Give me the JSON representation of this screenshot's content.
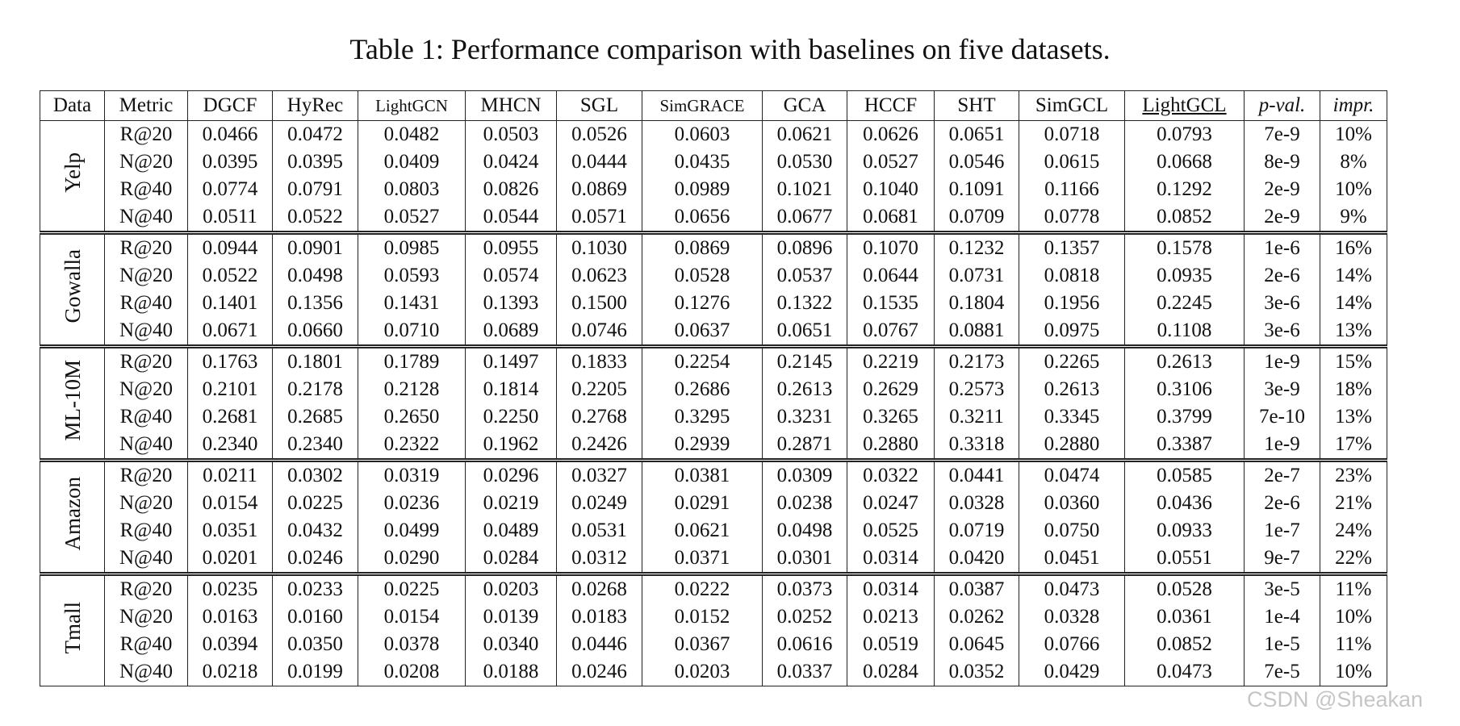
{
  "title": "Table 1: Performance comparison with baselines on five datasets.",
  "header": {
    "columns": [
      "Data",
      "Metric",
      "DGCF",
      "HyRec",
      "LightGCN",
      "MHCN",
      "SGL",
      "SimGRACE",
      "GCA",
      "HCCF",
      "SHT",
      "SimGCL",
      "LightGCL",
      "p-val.",
      "impr."
    ]
  },
  "groups": [
    {
      "name": "Yelp",
      "rows": [
        {
          "metric": "R@20",
          "values": [
            "0.0466",
            "0.0472",
            "0.0482",
            "0.0503",
            "0.0526",
            "0.0603",
            "0.0621",
            "0.0626",
            "0.0651",
            "0.0718",
            "0.0793",
            "7e-9",
            "10%"
          ]
        },
        {
          "metric": "N@20",
          "values": [
            "0.0395",
            "0.0395",
            "0.0409",
            "0.0424",
            "0.0444",
            "0.0435",
            "0.0530",
            "0.0527",
            "0.0546",
            "0.0615",
            "0.0668",
            "8e-9",
            "8%"
          ]
        },
        {
          "metric": "R@40",
          "values": [
            "0.0774",
            "0.0791",
            "0.0803",
            "0.0826",
            "0.0869",
            "0.0989",
            "0.1021",
            "0.1040",
            "0.1091",
            "0.1166",
            "0.1292",
            "2e-9",
            "10%"
          ]
        },
        {
          "metric": "N@40",
          "values": [
            "0.0511",
            "0.0522",
            "0.0527",
            "0.0544",
            "0.0571",
            "0.0656",
            "0.0677",
            "0.0681",
            "0.0709",
            "0.0778",
            "0.0852",
            "2e-9",
            "9%"
          ]
        }
      ]
    },
    {
      "name": "Gowalla",
      "rows": [
        {
          "metric": "R@20",
          "values": [
            "0.0944",
            "0.0901",
            "0.0985",
            "0.0955",
            "0.1030",
            "0.0869",
            "0.0896",
            "0.1070",
            "0.1232",
            "0.1357",
            "0.1578",
            "1e-6",
            "16%"
          ]
        },
        {
          "metric": "N@20",
          "values": [
            "0.0522",
            "0.0498",
            "0.0593",
            "0.0574",
            "0.0623",
            "0.0528",
            "0.0537",
            "0.0644",
            "0.0731",
            "0.0818",
            "0.0935",
            "2e-6",
            "14%"
          ]
        },
        {
          "metric": "R@40",
          "values": [
            "0.1401",
            "0.1356",
            "0.1431",
            "0.1393",
            "0.1500",
            "0.1276",
            "0.1322",
            "0.1535",
            "0.1804",
            "0.1956",
            "0.2245",
            "3e-6",
            "14%"
          ]
        },
        {
          "metric": "N@40",
          "values": [
            "0.0671",
            "0.0660",
            "0.0710",
            "0.0689",
            "0.0746",
            "0.0637",
            "0.0651",
            "0.0767",
            "0.0881",
            "0.0975",
            "0.1108",
            "3e-6",
            "13%"
          ]
        }
      ]
    },
    {
      "name": "ML-10M",
      "rows": [
        {
          "metric": "R@20",
          "values": [
            "0.1763",
            "0.1801",
            "0.1789",
            "0.1497",
            "0.1833",
            "0.2254",
            "0.2145",
            "0.2219",
            "0.2173",
            "0.2265",
            "0.2613",
            "1e-9",
            "15%"
          ]
        },
        {
          "metric": "N@20",
          "values": [
            "0.2101",
            "0.2178",
            "0.2128",
            "0.1814",
            "0.2205",
            "0.2686",
            "0.2613",
            "0.2629",
            "0.2573",
            "0.2613",
            "0.3106",
            "3e-9",
            "18%"
          ]
        },
        {
          "metric": "R@40",
          "values": [
            "0.2681",
            "0.2685",
            "0.2650",
            "0.2250",
            "0.2768",
            "0.3295",
            "0.3231",
            "0.3265",
            "0.3211",
            "0.3345",
            "0.3799",
            "7e-10",
            "13%"
          ]
        },
        {
          "metric": "N@40",
          "values": [
            "0.2340",
            "0.2340",
            "0.2322",
            "0.1962",
            "0.2426",
            "0.2939",
            "0.2871",
            "0.2880",
            "0.3318",
            "0.2880",
            "0.3387",
            "1e-9",
            "17%"
          ]
        }
      ]
    },
    {
      "name": "Amazon",
      "rows": [
        {
          "metric": "R@20",
          "values": [
            "0.0211",
            "0.0302",
            "0.0319",
            "0.0296",
            "0.0327",
            "0.0381",
            "0.0309",
            "0.0322",
            "0.0441",
            "0.0474",
            "0.0585",
            "2e-7",
            "23%"
          ]
        },
        {
          "metric": "N@20",
          "values": [
            "0.0154",
            "0.0225",
            "0.0236",
            "0.0219",
            "0.0249",
            "0.0291",
            "0.0238",
            "0.0247",
            "0.0328",
            "0.0360",
            "0.0436",
            "2e-6",
            "21%"
          ]
        },
        {
          "metric": "R@40",
          "values": [
            "0.0351",
            "0.0432",
            "0.0499",
            "0.0489",
            "0.0531",
            "0.0621",
            "0.0498",
            "0.0525",
            "0.0719",
            "0.0750",
            "0.0933",
            "1e-7",
            "24%"
          ]
        },
        {
          "metric": "N@40",
          "values": [
            "0.0201",
            "0.0246",
            "0.0290",
            "0.0284",
            "0.0312",
            "0.0371",
            "0.0301",
            "0.0314",
            "0.0420",
            "0.0451",
            "0.0551",
            "9e-7",
            "22%"
          ]
        }
      ]
    },
    {
      "name": "Tmall",
      "rows": [
        {
          "metric": "R@20",
          "values": [
            "0.0235",
            "0.0233",
            "0.0225",
            "0.0203",
            "0.0268",
            "0.0222",
            "0.0373",
            "0.0314",
            "0.0387",
            "0.0473",
            "0.0528",
            "3e-5",
            "11%"
          ]
        },
        {
          "metric": "N@20",
          "values": [
            "0.0163",
            "0.0160",
            "0.0154",
            "0.0139",
            "0.0183",
            "0.0152",
            "0.0252",
            "0.0213",
            "0.0262",
            "0.0328",
            "0.0361",
            "1e-4",
            "10%"
          ]
        },
        {
          "metric": "R@40",
          "values": [
            "0.0394",
            "0.0350",
            "0.0378",
            "0.0340",
            "0.0446",
            "0.0367",
            "0.0616",
            "0.0519",
            "0.0645",
            "0.0766",
            "0.0852",
            "1e-5",
            "11%"
          ]
        },
        {
          "metric": "N@40",
          "values": [
            "0.0218",
            "0.0199",
            "0.0208",
            "0.0188",
            "0.0246",
            "0.0203",
            "0.0337",
            "0.0284",
            "0.0352",
            "0.0429",
            "0.0473",
            "7e-5",
            "10%"
          ]
        }
      ]
    }
  ],
  "watermark": "CSDN @Sheakan"
}
